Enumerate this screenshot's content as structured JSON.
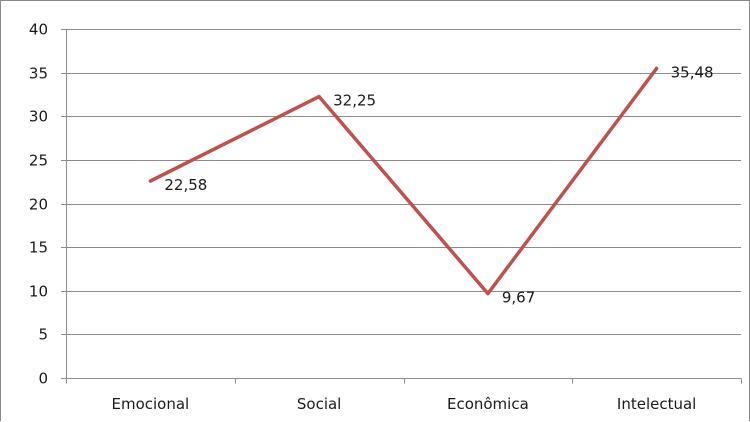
{
  "chart_data": {
    "type": "line",
    "title": "",
    "xlabel": "",
    "ylabel": "",
    "categories": [
      "Emocional",
      "Social",
      "Econômica",
      "Intelectual"
    ],
    "series": [
      {
        "values": [
          22.58,
          32.25,
          9.67,
          35.48
        ],
        "labels": [
          "22,58",
          "32,25",
          "9,67",
          "35,48"
        ],
        "color": "#c0504d"
      }
    ],
    "ylim": [
      0,
      40
    ],
    "yticks": [
      0,
      5,
      10,
      15,
      20,
      25,
      30,
      35,
      40
    ],
    "ytick_labels": [
      "0",
      "5",
      "10",
      "15",
      "20",
      "25",
      "30",
      "35",
      "40"
    ],
    "grid": true,
    "legend": "none",
    "colors": {
      "grid": "#8c8c8c",
      "axis": "#8c8c8c"
    }
  }
}
